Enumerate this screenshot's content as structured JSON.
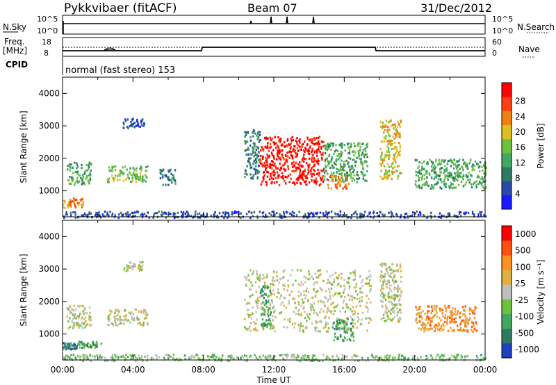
{
  "header": {
    "radar": "Pykkvibaer (fitACF)",
    "beam": "Beam 07",
    "date": "31/Dec/2012"
  },
  "params": {
    "nsky_label": "N.Sky",
    "nsky_ticks": [
      "10^5",
      "10^0"
    ],
    "nsearch_label": "N.Search",
    "nsearch_ticks": [
      "10^5",
      "10^0"
    ],
    "freq_label_1": "Freq.",
    "freq_label_2": "[MHz]",
    "freq_ticks": [
      "18",
      "8"
    ],
    "nave_label": "Nave",
    "nave_ticks": [
      "60",
      "0"
    ],
    "cpid_label": "CPID",
    "cpid_value": "normal (fast stereo) 153"
  },
  "colors": {
    "power": [
      "#1a1aff",
      "#2a4aa8",
      "#2e7a60",
      "#40a860",
      "#70c040",
      "#e0c020",
      "#f08010",
      "#ff4010",
      "#ff0000"
    ],
    "velocity": [
      "#ff0000",
      "#ff5010",
      "#ff9020",
      "#e0b040",
      "#bfbfbf",
      "#70c040",
      "#40a860",
      "#2e7a60",
      "#2040c0"
    ]
  },
  "chart_data": [
    {
      "type": "heatmap",
      "panel": "power",
      "ylabel": "Slant Range [km]",
      "yticks": [
        "1000",
        "2000",
        "3000",
        "4000"
      ],
      "ylim": [
        200,
        4500
      ],
      "xlim": [
        0,
        24
      ],
      "colorbar_label": "Power [dB]",
      "colorbar_ticks": [
        "4",
        "8",
        "12",
        "16",
        "20",
        "24",
        "28"
      ],
      "features": [
        {
          "t": [
            0.0,
            1.2
          ],
          "r": [
            500,
            800
          ],
          "level": 6
        },
        {
          "t": [
            0.2,
            1.6
          ],
          "r": [
            1200,
            1900
          ],
          "level": 3
        },
        {
          "t": [
            2.5,
            4.8
          ],
          "r": [
            1300,
            1800
          ],
          "level": 4
        },
        {
          "t": [
            3.4,
            4.6
          ],
          "r": [
            2950,
            3250
          ],
          "level": 1
        },
        {
          "t": [
            5.5,
            6.4
          ],
          "r": [
            1200,
            1700
          ],
          "level": 2
        },
        {
          "t": [
            10.3,
            11.2
          ],
          "r": [
            1400,
            2900
          ],
          "level": 2
        },
        {
          "t": [
            11.2,
            14.8
          ],
          "r": [
            1200,
            2700
          ],
          "level": 8
        },
        {
          "t": [
            14.8,
            17.3
          ],
          "r": [
            1300,
            2500
          ],
          "level": 3
        },
        {
          "t": [
            15.0,
            16.2
          ],
          "r": [
            1100,
            1500
          ],
          "level": 6
        },
        {
          "t": [
            18.0,
            19.2
          ],
          "r": [
            1400,
            3200
          ],
          "level": 5
        },
        {
          "t": [
            20.0,
            24.0
          ],
          "r": [
            1100,
            2000
          ],
          "level": 3
        },
        {
          "t": [
            0.0,
            24.0
          ],
          "r": [
            200,
            400
          ],
          "level": 1
        }
      ]
    },
    {
      "type": "heatmap",
      "panel": "velocity",
      "ylabel": "Slant Range [km]",
      "yticks": [
        "1000",
        "2000",
        "3000",
        "4000"
      ],
      "ylim": [
        200,
        4500
      ],
      "xlim": [
        0,
        24
      ],
      "xticks": [
        "00:00",
        "04:00",
        "08:00",
        "12:00",
        "16:00",
        "20:00",
        "00:00"
      ],
      "xlabel": "Time UT",
      "colorbar_label": "Velocity [m s⁻¹]",
      "colorbar_ticks": [
        "1000",
        "500",
        "100",
        "25",
        "-25",
        "-100",
        "-500",
        "-1000"
      ],
      "features": [
        {
          "t": [
            0.0,
            0.8
          ],
          "r": [
            550,
            750
          ],
          "level": 7
        },
        {
          "t": [
            0.8,
            2.2
          ],
          "r": [
            600,
            800
          ],
          "level": 6
        },
        {
          "t": [
            0.2,
            1.6
          ],
          "r": [
            1200,
            1900
          ],
          "level": 4
        },
        {
          "t": [
            2.5,
            4.8
          ],
          "r": [
            1300,
            1800
          ],
          "level": 4
        },
        {
          "t": [
            3.4,
            4.6
          ],
          "r": [
            2950,
            3250
          ],
          "level": 4
        },
        {
          "t": [
            10.3,
            17.5
          ],
          "r": [
            1100,
            3000
          ],
          "level": 4
        },
        {
          "t": [
            11.2,
            11.8
          ],
          "r": [
            1200,
            2500
          ],
          "level": 6
        },
        {
          "t": [
            15.3,
            16.5
          ],
          "r": [
            800,
            1500
          ],
          "level": 6
        },
        {
          "t": [
            18.0,
            19.2
          ],
          "r": [
            1400,
            3200
          ],
          "level": 4
        },
        {
          "t": [
            20.0,
            23.5
          ],
          "r": [
            1100,
            1900
          ],
          "level": 2
        },
        {
          "t": [
            0.0,
            24.0
          ],
          "r": [
            200,
            400
          ],
          "level": 5
        }
      ]
    }
  ]
}
